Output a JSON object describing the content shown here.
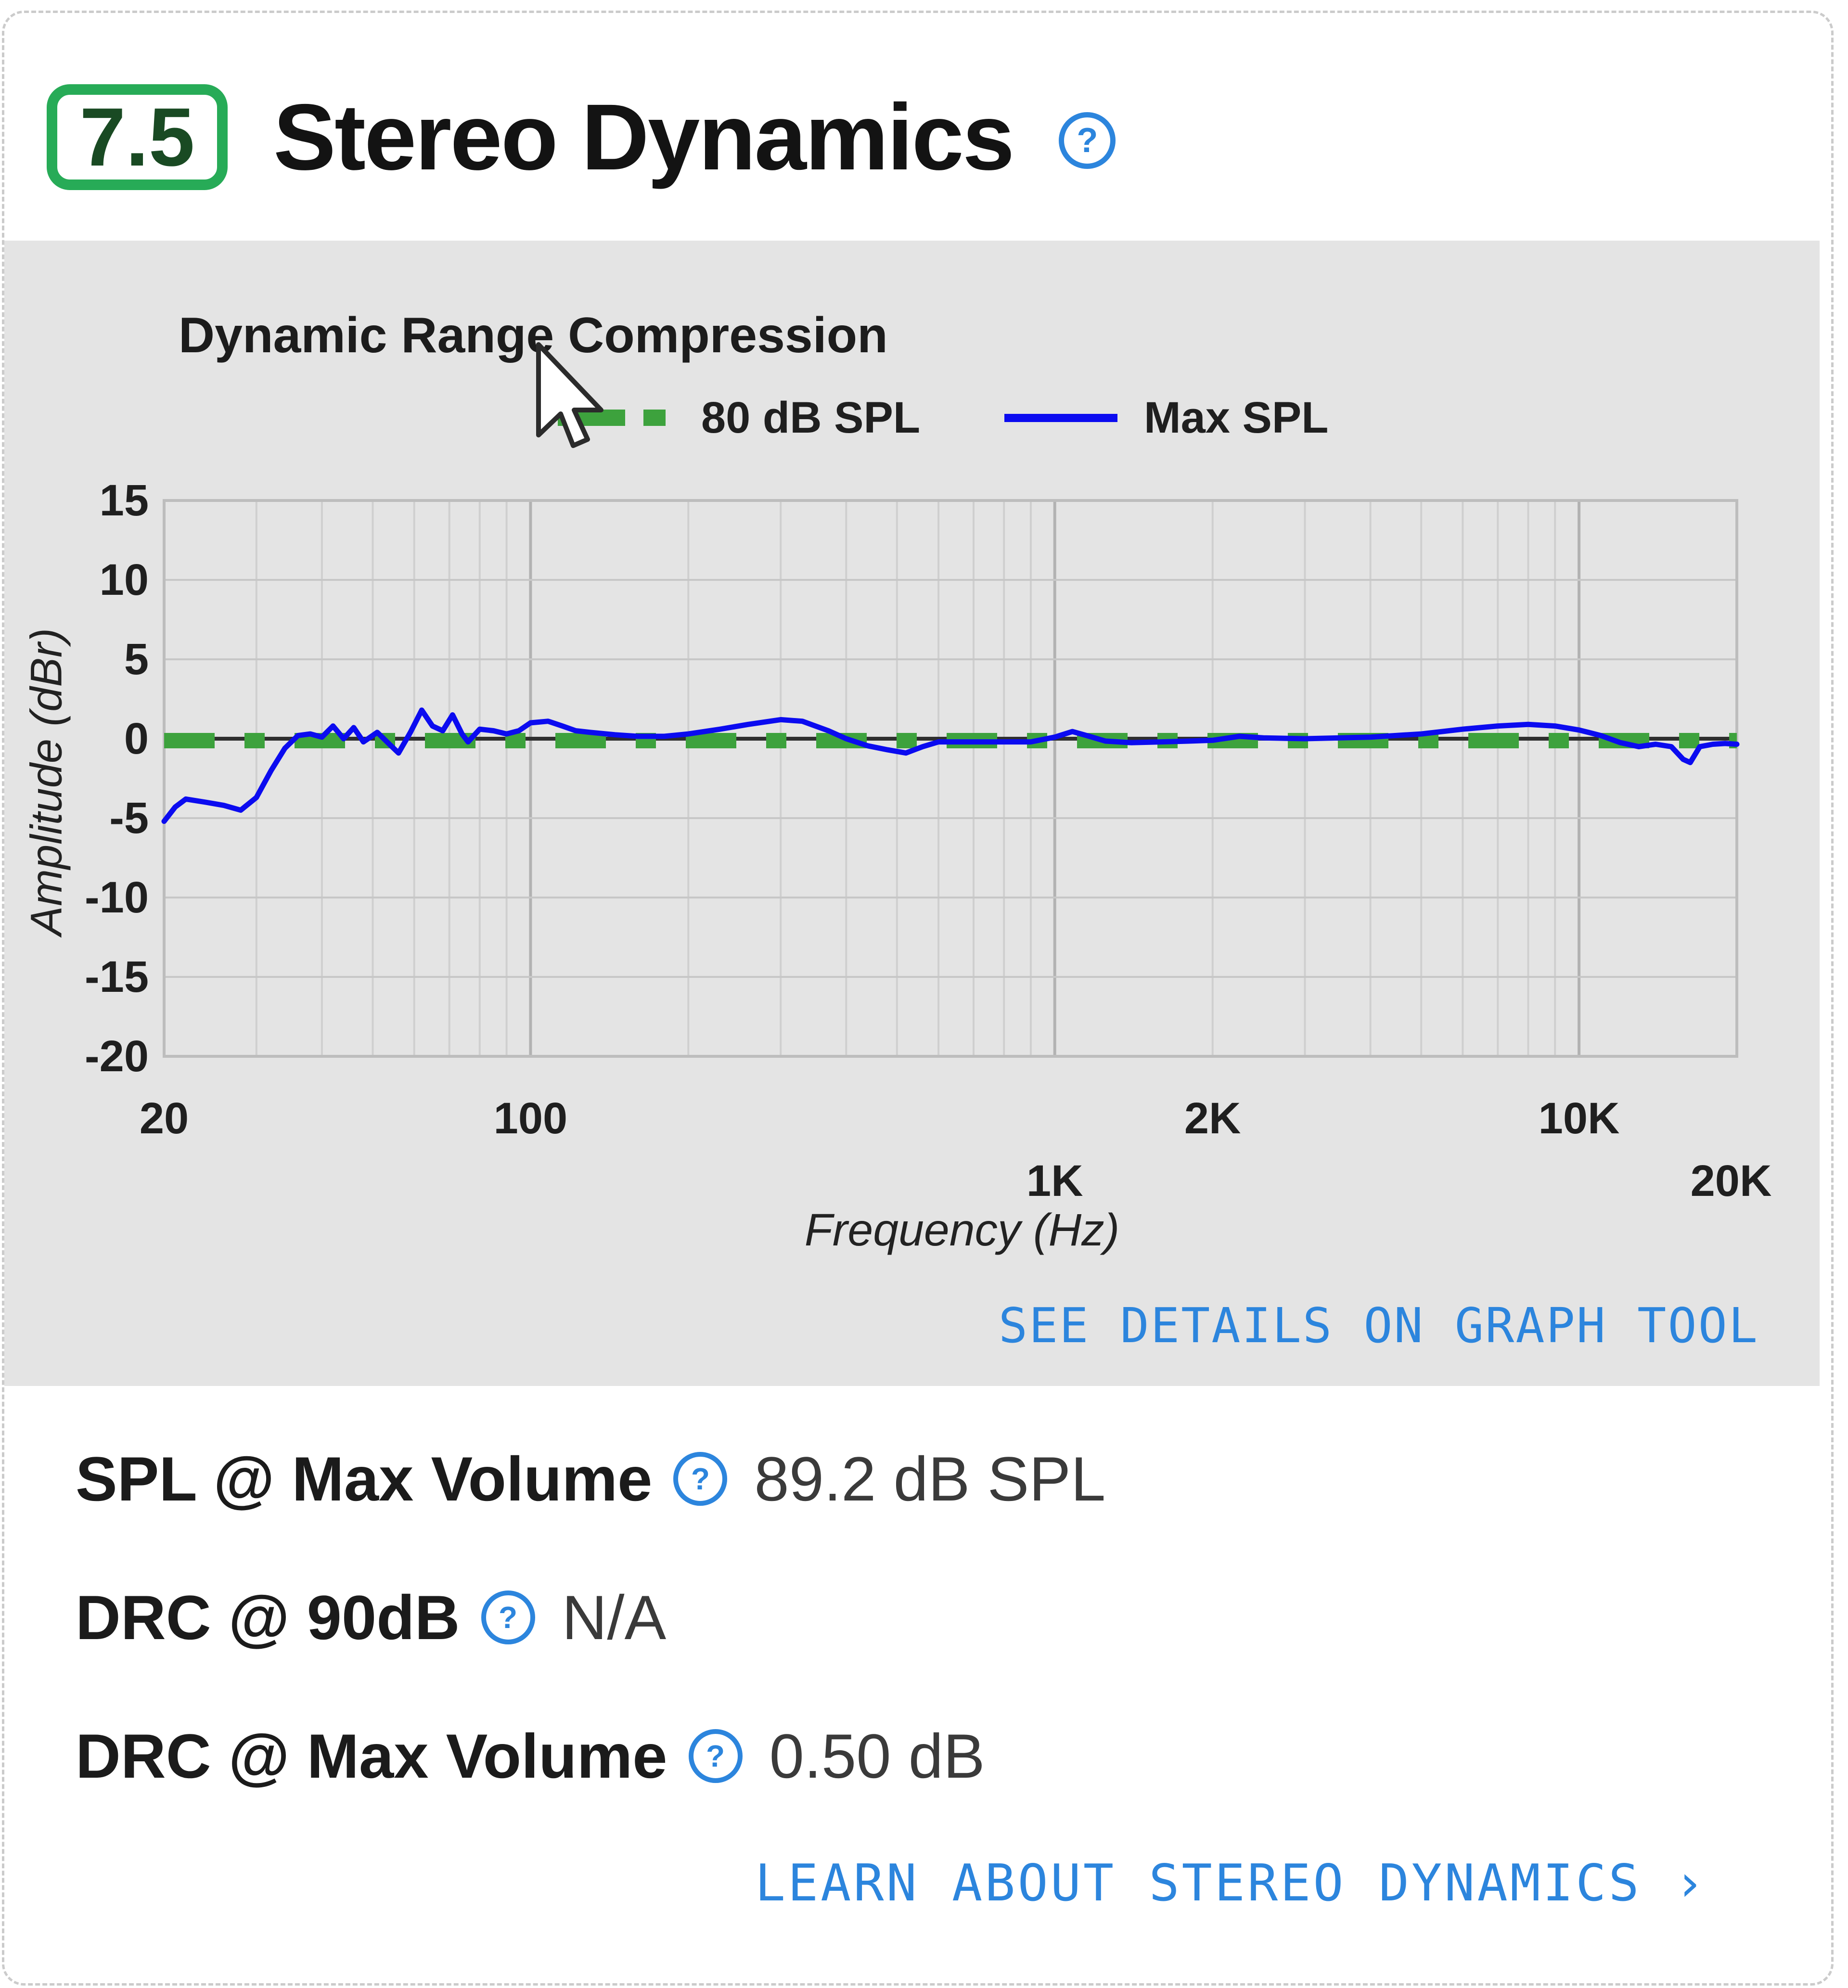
{
  "header": {
    "score": "7.5",
    "title": "Stereo Dynamics",
    "help_glyph": "?"
  },
  "chart_data": {
    "type": "line",
    "title": "Dynamic Range Compression",
    "xlabel": "Frequency (Hz)",
    "ylabel": "Amplitude (dBr)",
    "x_scale": "log",
    "xlim": [
      20,
      20000
    ],
    "ylim": [
      -20,
      15
    ],
    "grid": true,
    "legend_position": "top",
    "y_gridlines": [
      15,
      10,
      5,
      0,
      -5,
      -10,
      -15,
      -20
    ],
    "y_tick_labels": [
      "15",
      "10",
      "5",
      "0",
      "-5",
      "-10",
      "-15",
      "-20"
    ],
    "x_gridlines": [
      20,
      30,
      40,
      50,
      60,
      70,
      80,
      90,
      100,
      200,
      300,
      400,
      500,
      600,
      700,
      800,
      900,
      1000,
      2000,
      3000,
      4000,
      5000,
      6000,
      7000,
      8000,
      9000,
      10000,
      20000
    ],
    "x_major": [
      100,
      1000,
      10000
    ],
    "x_tick_labels": [
      {
        "label": "20",
        "freq": 20,
        "row": 1
      },
      {
        "label": "100",
        "freq": 100,
        "row": 1
      },
      {
        "label": "1K",
        "freq": 1000,
        "row": 2
      },
      {
        "label": "2K",
        "freq": 2000,
        "row": 1
      },
      {
        "label": "10K",
        "freq": 10000,
        "row": 1
      },
      {
        "label": "20K",
        "freq": 19500,
        "row": 2
      }
    ],
    "series": [
      {
        "name": "80 dB SPL",
        "color": "#3da23d",
        "style": "dashed",
        "reference_level_db": 0
      },
      {
        "name": "Max SPL",
        "color": "#0b0bf0",
        "style": "solid",
        "points": [
          [
            20,
            -5.2
          ],
          [
            21,
            -4.3
          ],
          [
            22,
            -3.8
          ],
          [
            24,
            -4.0
          ],
          [
            26,
            -4.2
          ],
          [
            28,
            -4.5
          ],
          [
            30,
            -3.7
          ],
          [
            32,
            -2.0
          ],
          [
            34,
            -0.6
          ],
          [
            36,
            0.2
          ],
          [
            38,
            0.3
          ],
          [
            40,
            0.1
          ],
          [
            42,
            0.8
          ],
          [
            44,
            0.0
          ],
          [
            46,
            0.7
          ],
          [
            48,
            -0.2
          ],
          [
            51,
            0.4
          ],
          [
            54,
            -0.4
          ],
          [
            56,
            -0.9
          ],
          [
            59,
            0.4
          ],
          [
            62,
            1.8
          ],
          [
            65,
            0.8
          ],
          [
            68,
            0.5
          ],
          [
            71,
            1.5
          ],
          [
            74,
            0.3
          ],
          [
            76,
            -0.2
          ],
          [
            80,
            0.6
          ],
          [
            85,
            0.5
          ],
          [
            90,
            0.3
          ],
          [
            95,
            0.5
          ],
          [
            100,
            1.0
          ],
          [
            108,
            1.1
          ],
          [
            115,
            0.8
          ],
          [
            122,
            0.5
          ],
          [
            130,
            0.4
          ],
          [
            145,
            0.25
          ],
          [
            160,
            0.15
          ],
          [
            180,
            0.15
          ],
          [
            200,
            0.3
          ],
          [
            230,
            0.6
          ],
          [
            260,
            0.9
          ],
          [
            300,
            1.2
          ],
          [
            330,
            1.1
          ],
          [
            370,
            0.5
          ],
          [
            400,
            0.0
          ],
          [
            440,
            -0.45
          ],
          [
            480,
            -0.7
          ],
          [
            520,
            -0.9
          ],
          [
            560,
            -0.5
          ],
          [
            600,
            -0.2
          ],
          [
            700,
            -0.2
          ],
          [
            800,
            -0.2
          ],
          [
            900,
            -0.2
          ],
          [
            1000,
            0.1
          ],
          [
            1080,
            0.45
          ],
          [
            1150,
            0.2
          ],
          [
            1250,
            -0.15
          ],
          [
            1400,
            -0.25
          ],
          [
            1600,
            -0.2
          ],
          [
            1800,
            -0.15
          ],
          [
            2000,
            -0.1
          ],
          [
            2250,
            0.15
          ],
          [
            2500,
            0.05
          ],
          [
            3000,
            0.0
          ],
          [
            3500,
            0.05
          ],
          [
            4000,
            0.1
          ],
          [
            5000,
            0.3
          ],
          [
            6000,
            0.6
          ],
          [
            7000,
            0.8
          ],
          [
            8000,
            0.9
          ],
          [
            9000,
            0.8
          ],
          [
            10000,
            0.55
          ],
          [
            11000,
            0.2
          ],
          [
            12000,
            -0.25
          ],
          [
            13000,
            -0.5
          ],
          [
            14000,
            -0.35
          ],
          [
            15000,
            -0.5
          ],
          [
            15800,
            -1.3
          ],
          [
            16300,
            -1.5
          ],
          [
            17000,
            -0.5
          ],
          [
            18000,
            -0.35
          ],
          [
            19000,
            -0.3
          ],
          [
            20000,
            -0.35
          ]
        ]
      }
    ]
  },
  "links": {
    "see_details": "SEE DETAILS ON GRAPH TOOL",
    "learn_about": "LEARN ABOUT STEREO DYNAMICS ›"
  },
  "stats": [
    {
      "label": "SPL @ Max Volume",
      "help_glyph": "?",
      "value": "89.2 dB SPL"
    },
    {
      "label": "DRC @ 90dB",
      "help_glyph": "?",
      "value": "N/A"
    },
    {
      "label": "DRC @ Max Volume",
      "help_glyph": "?",
      "value": "0.50 dB"
    }
  ],
  "colors": {
    "accent_green": "#27ab57",
    "score_text_green": "#194a23",
    "link_blue": "#2c85dd",
    "curve_blue": "#0b0bf0",
    "reference_green": "#3da23d",
    "panel_gray": "#e4e4e4"
  }
}
